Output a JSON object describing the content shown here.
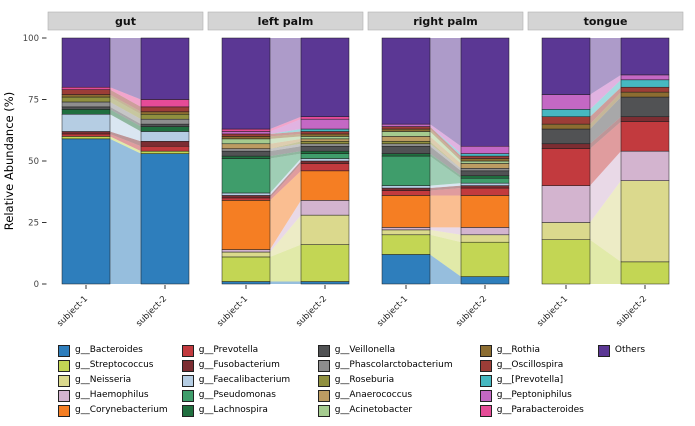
{
  "chart_data": {
    "type": "bar",
    "variant": "stacked-percent-with-alluvial-flows",
    "title": "",
    "ylabel": "Relative Abundance (%)",
    "y_ticks": [
      0,
      25,
      50,
      75,
      100
    ],
    "ylim": [
      0,
      100
    ],
    "grid": "off",
    "legend_position": "bottom",
    "categories": [
      "subject-1",
      "subject-2"
    ],
    "facet_labels": [
      "gut",
      "left palm",
      "right palm",
      "tongue"
    ],
    "taxa": [
      {
        "name": "g__Bacteroides",
        "color": "#2e7ebc"
      },
      {
        "name": "g__Streptococcus",
        "color": "#c3d654"
      },
      {
        "name": "g__Neisseria",
        "color": "#dbd98d"
      },
      {
        "name": "g__Haemophilus",
        "color": "#d3b4cf"
      },
      {
        "name": "g__Corynebacterium",
        "color": "#f57e23"
      },
      {
        "name": "g__Prevotella",
        "color": "#c23a3e"
      },
      {
        "name": "g__Fusobacterium",
        "color": "#7c2d32"
      },
      {
        "name": "g__Faecalibacterium",
        "color": "#b5cde3"
      },
      {
        "name": "g__Pseudomonas",
        "color": "#3f9d6b"
      },
      {
        "name": "g__Lachnospira",
        "color": "#206f3f"
      },
      {
        "name": "g__Veillonella",
        "color": "#515254"
      },
      {
        "name": "g__Phascolarctobacterium",
        "color": "#8e8e8e"
      },
      {
        "name": "g__Roseburia",
        "color": "#90903f"
      },
      {
        "name": "g__Anaerococcus",
        "color": "#bc9c62"
      },
      {
        "name": "g__Acinetobacter",
        "color": "#a5cb8f"
      },
      {
        "name": "g__Rothia",
        "color": "#8c6d31"
      },
      {
        "name": "g__Oscillospira",
        "color": "#9c3d37"
      },
      {
        "name": "g__[Prevotella]",
        "color": "#46b8c1"
      },
      {
        "name": "g__Peptoniphilus",
        "color": "#c468c4"
      },
      {
        "name": "g__Parabacteroides",
        "color": "#e54b97"
      },
      {
        "name": "Others",
        "color": "#5b3794"
      }
    ],
    "facets": [
      {
        "label": "gut",
        "subject_1": [
          59,
          1,
          0,
          0,
          0,
          1,
          1,
          7,
          0,
          2,
          1,
          2,
          2,
          0,
          0,
          1,
          2,
          0,
          0,
          1,
          20
        ],
        "subject_2": [
          53,
          1,
          0,
          0,
          0,
          2,
          2,
          4,
          0,
          2,
          1,
          2,
          2,
          0,
          0,
          1,
          2,
          0,
          0,
          3,
          25
        ]
      },
      {
        "label": "left palm",
        "subject_1": [
          1,
          10,
          2,
          1,
          20,
          1,
          1,
          1,
          14,
          1,
          2,
          1,
          0,
          2,
          2,
          1,
          1,
          0,
          1,
          1,
          37
        ],
        "subject_2": [
          1,
          15,
          12,
          6,
          12,
          3,
          1,
          1,
          2,
          1,
          2,
          1,
          1,
          1,
          1,
          1,
          1,
          1,
          4,
          1,
          32
        ]
      },
      {
        "label": "right palm",
        "subject_1": [
          12,
          8,
          2,
          1,
          13,
          2,
          1,
          1,
          12,
          1,
          3,
          1,
          1,
          2,
          2,
          1,
          1,
          0,
          1,
          0,
          35
        ],
        "subject_2": [
          3,
          14,
          3,
          3,
          13,
          3,
          1,
          1,
          2,
          1,
          2,
          1,
          0,
          2,
          1,
          1,
          1,
          1,
          3,
          0,
          44
        ]
      },
      {
        "label": "tongue",
        "subject_1": [
          0,
          18,
          7,
          15,
          0,
          15,
          2,
          0,
          0,
          0,
          6,
          0,
          0,
          0,
          0,
          2,
          3,
          3,
          6,
          0,
          23
        ],
        "subject_2": [
          0,
          9,
          33,
          12,
          0,
          12,
          2,
          0,
          0,
          0,
          8,
          0,
          0,
          0,
          0,
          2,
          2,
          3,
          2,
          0,
          15
        ]
      }
    ],
    "legend_columns": [
      5,
      5,
      5,
      5,
      1
    ]
  }
}
